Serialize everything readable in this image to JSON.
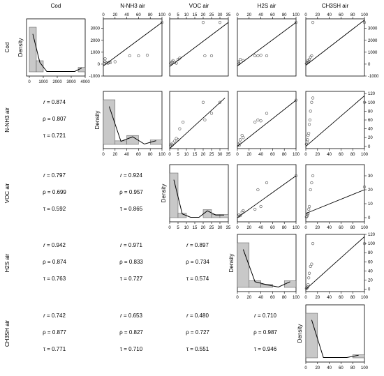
{
  "chart_data": {
    "type": "scatter",
    "title": "",
    "variables": [
      "Cod",
      "N-NH3 air",
      "VOC air",
      "H2S air",
      "CH3SH air"
    ],
    "diagonal_ylabel": "Density",
    "tick_labels": {
      "Cod_x": [
        "0",
        "1000",
        "2000",
        "3000",
        "4000"
      ],
      "Cod_y": [
        "-1000",
        "0",
        "1000",
        "2000",
        "3000"
      ],
      "NNH3": [
        "0",
        "20",
        "40",
        "60",
        "80",
        "100"
      ],
      "VOC": [
        "0",
        "5",
        "10",
        "15",
        "20",
        "25",
        "30",
        "35"
      ],
      "VOC_y": [
        "0",
        "10",
        "20",
        "30"
      ],
      "H2S": [
        "0",
        "20",
        "40",
        "60",
        "80",
        "100"
      ],
      "H2S_y": [
        "0",
        "20",
        "40",
        "60",
        "80",
        "100",
        "120"
      ],
      "CH3SH": [
        "0",
        "20",
        "40",
        "60",
        "80",
        "100"
      ]
    },
    "histograms": [
      {
        "var": "Cod",
        "bins": [
          0,
          500,
          1000,
          1500,
          2000,
          2500,
          3000,
          3500,
          4000
        ],
        "heights": [
          1,
          0.25,
          0,
          0,
          0,
          0,
          0,
          0.1
        ]
      },
      {
        "var": "N-NH3 air",
        "bins": [
          0,
          20,
          40,
          60,
          80,
          100
        ],
        "heights": [
          1,
          0.08,
          0.2,
          0,
          0.1
        ]
      },
      {
        "var": "VOC air",
        "bins": [
          0,
          5,
          10,
          15,
          20,
          25,
          30,
          35
        ],
        "heights": [
          1,
          0.1,
          0,
          0,
          0.18,
          0.07,
          0.07
        ]
      },
      {
        "var": "H2S air",
        "bins": [
          0,
          20,
          40,
          60,
          80,
          100
        ],
        "heights": [
          1,
          0.15,
          0.07,
          0,
          0.15
        ]
      },
      {
        "var": "CH3SH air",
        "bins": [
          0,
          20,
          40,
          60,
          80,
          100
        ],
        "heights": [
          1,
          0,
          0,
          0,
          0.07
        ]
      }
    ],
    "scatter": [
      {
        "x": "N-NH3 air",
        "y": "Cod",
        "points": [
          [
            2,
            50
          ],
          [
            3,
            200
          ],
          [
            3,
            450
          ],
          [
            5,
            100
          ],
          [
            8,
            80
          ],
          [
            10,
            150
          ],
          [
            12,
            120
          ],
          [
            20,
            200
          ],
          [
            45,
            700
          ],
          [
            60,
            700
          ],
          [
            75,
            750
          ],
          [
            100,
            3500
          ]
        ],
        "line": [
          [
            0,
            -150
          ],
          [
            100,
            3500
          ]
        ]
      },
      {
        "x": "VOC air",
        "y": "Cod",
        "points": [
          [
            0.5,
            50
          ],
          [
            1,
            100
          ],
          [
            1.5,
            200
          ],
          [
            2,
            300
          ],
          [
            3,
            150
          ],
          [
            4,
            80
          ],
          [
            5,
            400
          ],
          [
            6,
            500
          ],
          [
            20,
            3500
          ],
          [
            21,
            700
          ],
          [
            25,
            700
          ],
          [
            30,
            3500
          ]
        ],
        "line": [
          [
            0,
            -200
          ],
          [
            35,
            3500
          ]
        ]
      },
      {
        "x": "H2S air",
        "y": "Cod",
        "points": [
          [
            2,
            100
          ],
          [
            2,
            200
          ],
          [
            3,
            50
          ],
          [
            5,
            400
          ],
          [
            10,
            300
          ],
          [
            30,
            700
          ],
          [
            35,
            700
          ],
          [
            40,
            750
          ],
          [
            50,
            700
          ],
          [
            100,
            3500
          ]
        ],
        "line": [
          [
            0,
            -150
          ],
          [
            100,
            3500
          ]
        ]
      },
      {
        "x": "CH3SH air",
        "y": "Cod",
        "points": [
          [
            1,
            50
          ],
          [
            2,
            100
          ],
          [
            3,
            150
          ],
          [
            4,
            300
          ],
          [
            5,
            200
          ],
          [
            6,
            400
          ],
          [
            8,
            600
          ],
          [
            10,
            700
          ],
          [
            12,
            3500
          ],
          [
            100,
            3500
          ]
        ],
        "line": [
          [
            0,
            -100
          ],
          [
            100,
            3700
          ]
        ]
      },
      {
        "x": "VOC air",
        "y": "N-NH3 air",
        "points": [
          [
            0.5,
            2
          ],
          [
            1,
            5
          ],
          [
            1.5,
            3
          ],
          [
            2,
            8
          ],
          [
            3,
            12
          ],
          [
            4,
            18
          ],
          [
            5,
            15
          ],
          [
            6,
            40
          ],
          [
            8,
            55
          ],
          [
            20,
            100
          ],
          [
            21,
            60
          ],
          [
            25,
            75
          ],
          [
            30,
            100
          ]
        ],
        "line": [
          [
            0,
            -5
          ],
          [
            33,
            110
          ]
        ]
      },
      {
        "x": "H2S air",
        "y": "N-NH3 air",
        "points": [
          [
            2,
            5
          ],
          [
            3,
            2
          ],
          [
            4,
            8
          ],
          [
            5,
            15
          ],
          [
            8,
            25
          ],
          [
            10,
            20
          ],
          [
            30,
            55
          ],
          [
            35,
            60
          ],
          [
            40,
            58
          ],
          [
            50,
            75
          ],
          [
            100,
            105
          ]
        ],
        "line": [
          [
            0,
            0
          ],
          [
            100,
            105
          ]
        ]
      },
      {
        "x": "CH3SH air",
        "y": "N-NH3 air",
        "points": [
          [
            1,
            5
          ],
          [
            2,
            10
          ],
          [
            3,
            15
          ],
          [
            4,
            25
          ],
          [
            5,
            30
          ],
          [
            6,
            50
          ],
          [
            7,
            60
          ],
          [
            8,
            80
          ],
          [
            10,
            100
          ],
          [
            12,
            110
          ],
          [
            100,
            100
          ]
        ],
        "line": [
          [
            0,
            0
          ],
          [
            100,
            115
          ]
        ]
      },
      {
        "x": "H2S air",
        "y": "VOC air",
        "points": [
          [
            2,
            1
          ],
          [
            3,
            2
          ],
          [
            5,
            1.5
          ],
          [
            8,
            4
          ],
          [
            10,
            5
          ],
          [
            30,
            6
          ],
          [
            35,
            20
          ],
          [
            40,
            8
          ],
          [
            50,
            25
          ],
          [
            100,
            30
          ]
        ],
        "line": [
          [
            0,
            0
          ],
          [
            100,
            30
          ]
        ]
      },
      {
        "x": "CH3SH air",
        "y": "VOC air",
        "points": [
          [
            1,
            0.5
          ],
          [
            2,
            1
          ],
          [
            3,
            2
          ],
          [
            4,
            3
          ],
          [
            5,
            6
          ],
          [
            6,
            8
          ],
          [
            8,
            20
          ],
          [
            10,
            25
          ],
          [
            12,
            30
          ],
          [
            100,
            22
          ]
        ],
        "line": [
          [
            0,
            3
          ],
          [
            100,
            20
          ]
        ]
      },
      {
        "x": "CH3SH air",
        "y": "H2S air",
        "points": [
          [
            1,
            2
          ],
          [
            2,
            3
          ],
          [
            3,
            5
          ],
          [
            4,
            10
          ],
          [
            5,
            25
          ],
          [
            6,
            35
          ],
          [
            8,
            50
          ],
          [
            10,
            55
          ],
          [
            12,
            100
          ],
          [
            100,
            100
          ]
        ],
        "line": [
          [
            0,
            0
          ],
          [
            100,
            115
          ]
        ]
      }
    ],
    "correlations": [
      {
        "row": "N-NH3 air",
        "col": "Cod",
        "r": "0.874",
        "rho": "0.807",
        "tau": "0.721"
      },
      {
        "row": "VOC air",
        "col": "Cod",
        "r": "0.797",
        "rho": "0.699",
        "tau": "0.592"
      },
      {
        "row": "VOC air",
        "col": "N-NH3 air",
        "r": "0.924",
        "rho": "0.957",
        "tau": "0.865"
      },
      {
        "row": "H2S air",
        "col": "Cod",
        "r": "0.942",
        "rho": "0.874",
        "tau": "0.763"
      },
      {
        "row": "H2S air",
        "col": "N-NH3 air",
        "r": "0.971",
        "rho": "0.833",
        "tau": "0.727"
      },
      {
        "row": "H2S air",
        "col": "VOC air",
        "r": "0.897",
        "rho": "0.734",
        "tau": "0.574"
      },
      {
        "row": "CH3SH air",
        "col": "Cod",
        "r": "0.742",
        "rho": "0.877",
        "tau": "0.771"
      },
      {
        "row": "CH3SH air",
        "col": "N-NH3 air",
        "r": "0.653",
        "rho": "0.827",
        "tau": "0.710"
      },
      {
        "row": "CH3SH air",
        "col": "VOC air",
        "r": "0.480",
        "rho": "0.727",
        "tau": "0.551"
      },
      {
        "row": "CH3SH air",
        "col": "H2S air",
        "r": "0.710",
        "rho": "0.987",
        "tau": "0.946"
      }
    ],
    "colors": {
      "bar": "#c8c8c8",
      "stroke": "#000000",
      "point": "#555555"
    }
  }
}
